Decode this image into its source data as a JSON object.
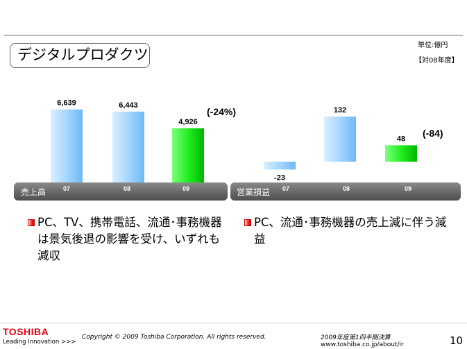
{
  "header": {
    "title": "デジタルプロダクツ",
    "unit": "単位:億円",
    "comparison": "【対08年度】"
  },
  "chart_data": [
    {
      "type": "bar",
      "title": "売上高",
      "categories": [
        "07",
        "08",
        "09"
      ],
      "values": [
        6639,
        6443,
        4926
      ],
      "value_labels": [
        "6,639",
        "6,443",
        "4,926"
      ],
      "bar_colors": [
        "#9fd3ff",
        "#9fd3ff",
        "#22ee22"
      ],
      "change_label": "(-24%)",
      "ylim": [
        0,
        7000
      ]
    },
    {
      "type": "bar",
      "title": "営業損益",
      "categories": [
        "07",
        "08",
        "09"
      ],
      "values": [
        -23,
        132,
        48
      ],
      "value_labels": [
        "-23",
        "132",
        "48"
      ],
      "bar_colors": [
        "#9fd3ff",
        "#9fd3ff",
        "#22ee22"
      ],
      "change_label": "(-84)",
      "ylim": [
        -40,
        140
      ]
    }
  ],
  "bullets": {
    "left": "PC、TV、携帯電話、流通･事務機器は景気後退の影響を受け、いずれも減収",
    "right": "PC、流通･事務機器の売上減に伴う減益"
  },
  "footer": {
    "logo": "TOSHIBA",
    "tagline": "Leading Innovation >>>",
    "copyright": "Copyright © 2009 Toshiba Corporation. All rights reserved.",
    "report_title": "2009年度第1四半期決算",
    "url": "www.toshiba.co.jp/about/ir",
    "page_number": "10"
  }
}
